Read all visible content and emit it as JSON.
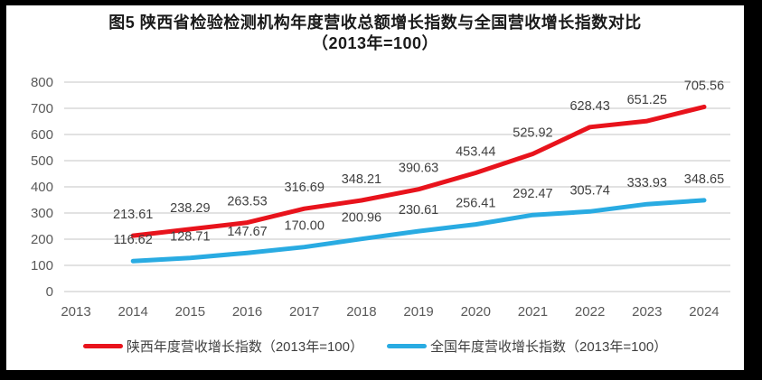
{
  "frame": {
    "background_color": "#000000",
    "panel_color": "#ffffff"
  },
  "title": {
    "line1": "图5  陕西省检验检测机构年度营收总额增长指数与全国营收增长指数对比",
    "line2": "（2013年=100）"
  },
  "chart_data": {
    "type": "line",
    "categories": [
      "2013",
      "2014",
      "2015",
      "2016",
      "2017",
      "2018",
      "2019",
      "2020",
      "2021",
      "2022",
      "2023",
      "2024"
    ],
    "series": [
      {
        "name": "陕西年度营收增长指数（2013年=100）",
        "color": "#e8131c",
        "stroke_width": 5,
        "values": [
          null,
          213.61,
          238.29,
          263.53,
          316.69,
          348.21,
          390.63,
          453.44,
          525.92,
          628.43,
          651.25,
          705.56
        ]
      },
      {
        "name": "全国年度营收增长指数（2013年=100）",
        "color": "#29abe2",
        "stroke_width": 5,
        "values": [
          null,
          116.62,
          128.71,
          147.67,
          170.0,
          200.96,
          230.61,
          256.41,
          292.47,
          305.74,
          333.93,
          348.65
        ]
      }
    ],
    "ylim": [
      0,
      800
    ],
    "ytick_step": 100,
    "yticks": [
      0,
      100,
      200,
      300,
      400,
      500,
      600,
      700,
      800
    ],
    "grid": true,
    "gridline_color": "#d9d9d9",
    "axis_text_color": "#595959",
    "data_labels": true,
    "data_label_decimals": 2,
    "data_label_color": "#404040",
    "legend_position": "bottom"
  },
  "legend": {
    "items": [
      {
        "label": "陕西年度营收增长指数（2013年=100）",
        "color": "#e8131c"
      },
      {
        "label": "全国年度营收增长指数（2013年=100）",
        "color": "#29abe2"
      }
    ]
  }
}
